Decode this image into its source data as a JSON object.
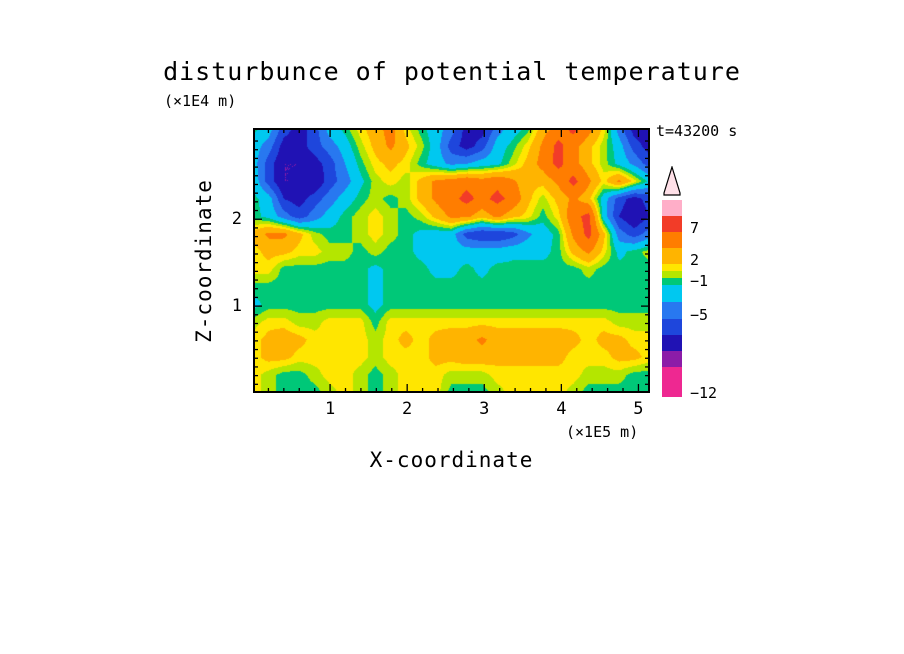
{
  "title": "disturbunce of potential temperature",
  "time_label": "t=43200 s",
  "y_axis_unit": "(×1E4 m)",
  "x_axis_unit": "(×1E5 m)",
  "axes": {
    "x": {
      "label": "X-coordinate",
      "min": 0,
      "max": 5.15,
      "ticks": [
        1,
        2,
        3,
        4,
        5
      ],
      "minor_step": 0.2
    },
    "y": {
      "label": "Z-coordinate",
      "min": 0,
      "max": 3.05,
      "ticks": [
        1,
        2
      ],
      "minor_step": 0.1
    }
  },
  "colorbar": {
    "arrow_height": 30,
    "arrow_color": "#ffe0e8",
    "tick_labels": [
      "7",
      "2",
      "−1",
      "−5",
      "−12"
    ],
    "bands": [
      {
        "color": "#ffaec8",
        "h": 16,
        "label": ""
      },
      {
        "color": "#f23c28",
        "h": 16,
        "label": "7"
      },
      {
        "color": "#ff7d00",
        "h": 16,
        "label": ""
      },
      {
        "color": "#ffb400",
        "h": 16,
        "label": "2"
      },
      {
        "color": "#ffe600",
        "h": 7,
        "label": ""
      },
      {
        "color": "#b4e600",
        "h": 7,
        "label": ""
      },
      {
        "color": "#00c878",
        "h": 7,
        "label": "−1"
      },
      {
        "color": "#00c8f0",
        "h": 17,
        "label": ""
      },
      {
        "color": "#2878f0",
        "h": 17,
        "label": "−5"
      },
      {
        "color": "#1e46dc",
        "h": 16,
        "label": ""
      },
      {
        "color": "#2012b4",
        "h": 16,
        "label": ""
      },
      {
        "color": "#8c1ca8",
        "h": 16,
        "label": ""
      },
      {
        "color": "#ee2891",
        "h": 30,
        "label": "−12"
      }
    ]
  },
  "chart_data": {
    "type": "heatmap",
    "title": "disturbunce of potential temperature",
    "xlabel": "X-coordinate (×1E5 m)",
    "ylabel": "Z-coordinate (×1E4 m)",
    "annotation": "t=43200 s",
    "x_range": [
      0,
      5.15
    ],
    "y_range": [
      0,
      3.05
    ],
    "contour_boundaries": [
      -12,
      -9,
      -7,
      -5,
      -3,
      -1,
      0,
      1,
      2,
      4,
      7,
      10
    ],
    "tick_labels": [
      "7",
      "2",
      "−1",
      "−5",
      "−12"
    ],
    "levels": [
      {
        "min": -99,
        "color": "#ee2891"
      },
      {
        "min": -12,
        "color": "#8c1ca8"
      },
      {
        "min": -9,
        "color": "#2012b4"
      },
      {
        "min": -7,
        "color": "#1e46dc"
      },
      {
        "min": -5,
        "color": "#2878f0"
      },
      {
        "min": -3,
        "color": "#00c8f0"
      },
      {
        "min": -1,
        "color": "#00c878"
      },
      {
        "min": 0,
        "color": "#b4e600"
      },
      {
        "min": 1,
        "color": "#ffe600"
      },
      {
        "min": 2,
        "color": "#ffb400"
      },
      {
        "min": 4,
        "color": "#ff7d00"
      },
      {
        "min": 7,
        "color": "#f23c28"
      },
      {
        "min": 10,
        "color": "#ffaec8"
      }
    ],
    "grid": {
      "nx": 27,
      "ny": 16,
      "x_left": 0,
      "x_right": 5.15,
      "z_top": 3.05,
      "z_bottom": 0,
      "values": [
        [
          -0.5,
          -2,
          -6,
          -8,
          -6,
          -2,
          -0.5,
          1.5,
          3,
          5,
          1.5,
          -0.5,
          -2,
          -4,
          -8,
          -8,
          -4,
          -2,
          -0.5,
          3,
          5,
          8,
          5,
          1.5,
          -4,
          -8,
          -8
        ],
        [
          -2,
          -4,
          -8,
          -8,
          -6,
          -4,
          -2,
          0.5,
          2.5,
          4.5,
          2.5,
          0.5,
          -2,
          -6,
          -8,
          -6,
          -2,
          -0.5,
          1.5,
          4.5,
          8,
          5,
          2.5,
          0.5,
          -2,
          -6,
          -8
        ],
        [
          -2,
          -6,
          -9,
          -9,
          -8,
          -6,
          -3,
          -0.5,
          1.5,
          2.5,
          1.5,
          -0.5,
          -2,
          -3.5,
          -3,
          -2,
          -1.5,
          0.5,
          2.5,
          5,
          8,
          5,
          2.5,
          0.5,
          -1.5,
          -3.5,
          -6
        ],
        [
          -1.5,
          -6,
          -9,
          -9,
          -9,
          -6,
          -4,
          -1.5,
          0.5,
          1.5,
          0.5,
          2.5,
          4.5,
          5,
          6,
          5,
          6,
          4.5,
          2.5,
          2.5,
          4.5,
          8,
          4.5,
          1.5,
          4.5,
          1.5,
          -1.5
        ],
        [
          -0.5,
          -2,
          -7,
          -8,
          -6,
          -4,
          -2,
          -0.5,
          0.5,
          -0.5,
          0.5,
          2.5,
          4.5,
          6,
          8,
          6,
          8,
          6,
          2.5,
          0.5,
          2.5,
          4.5,
          2.5,
          -2,
          -6,
          -8,
          -6
        ],
        [
          -0.5,
          -1.5,
          -4,
          -6,
          -4,
          -2,
          -0.5,
          0.5,
          1.5,
          0.5,
          -0.5,
          0.5,
          2.5,
          4.5,
          4.5,
          2.5,
          4.5,
          2.5,
          1.5,
          -0.5,
          1.5,
          6,
          8,
          -2,
          -7,
          -9,
          -7
        ],
        [
          2.5,
          4.5,
          4.5,
          2.5,
          0.5,
          -0.5,
          -0.5,
          0.5,
          1.5,
          0.5,
          -0.5,
          -1.5,
          -2,
          -2,
          -6,
          -7,
          -7,
          -6,
          -3.5,
          -2,
          -0.5,
          4.5,
          8,
          2.5,
          -4,
          -6,
          -4
        ],
        [
          1.5,
          2.5,
          2.5,
          1.5,
          1.5,
          0.5,
          0.5,
          -0.5,
          0.5,
          -0.5,
          -0.5,
          -1.5,
          -2,
          -2,
          -2,
          -2,
          -2,
          -1.5,
          -1.5,
          -1.5,
          -0.5,
          2.5,
          4.5,
          1.5,
          -1.5,
          -0.5,
          0.5
        ],
        [
          1.5,
          1.5,
          -0.5,
          -0.5,
          -0.5,
          -0.5,
          -0.5,
          -0.5,
          -1.5,
          -0.5,
          -0.5,
          -0.5,
          -1.5,
          -1.5,
          -0.5,
          -1.5,
          -0.5,
          -0.5,
          -0.5,
          -0.5,
          -0.5,
          -0.5,
          0.5,
          -0.5,
          -0.5,
          -0.5,
          -0.5
        ],
        [
          -0.5,
          -0.5,
          -0.5,
          -0.5,
          -0.5,
          -0.5,
          -0.5,
          -0.5,
          -1.5,
          -0.5,
          -0.5,
          -0.5,
          -0.5,
          -0.5,
          -0.5,
          -0.5,
          -0.5,
          -0.5,
          -0.5,
          -0.5,
          -0.5,
          -0.5,
          -0.5,
          -0.5,
          -0.5,
          -0.5,
          -0.5
        ],
        [
          -1.5,
          -0.5,
          -0.5,
          -0.5,
          -0.5,
          -0.5,
          -0.5,
          -0.5,
          -1.5,
          -0.5,
          -0.5,
          -0.5,
          -0.5,
          -0.5,
          -0.5,
          -0.5,
          -0.5,
          -0.5,
          -0.5,
          -0.5,
          -0.5,
          -0.5,
          -0.5,
          -0.5,
          -0.5,
          -0.5,
          -0.5
        ],
        [
          0.5,
          1.5,
          1.5,
          0.5,
          0.5,
          1.5,
          1.5,
          1.5,
          -0.5,
          1.5,
          1.5,
          1.5,
          1.5,
          1.5,
          1.5,
          1.5,
          1.5,
          1.5,
          1.5,
          1.5,
          1.5,
          1.5,
          1.5,
          1.5,
          0.5,
          0.5,
          0.5
        ],
        [
          1.5,
          2.5,
          3,
          2.5,
          1.5,
          1.5,
          1.5,
          1.5,
          0.5,
          1.5,
          2.5,
          1.5,
          2.5,
          3,
          3,
          4.5,
          3,
          3,
          3,
          3,
          3,
          2.5,
          1.5,
          2.5,
          2.5,
          1.5,
          1.5
        ],
        [
          1.5,
          2.5,
          2.5,
          1.5,
          1.5,
          1.5,
          1.5,
          1.5,
          0.5,
          1.5,
          1.5,
          1.5,
          2.5,
          2.5,
          3,
          3,
          2.5,
          2.5,
          2.5,
          2.5,
          2.5,
          1.5,
          1.5,
          1.5,
          2.5,
          2.5,
          1.5
        ],
        [
          1.5,
          0.5,
          -0.5,
          -0.5,
          0.5,
          1.5,
          1.5,
          0.5,
          -0.5,
          0.5,
          1.5,
          1.5,
          1.5,
          0.5,
          0.5,
          0.5,
          1.5,
          1.5,
          1.5,
          1.5,
          1.5,
          1.5,
          0.5,
          0.5,
          0.5,
          -0.5,
          -0.5
        ],
        [
          1.5,
          0.5,
          -0.5,
          -0.5,
          -0.5,
          0.5,
          1.5,
          0.5,
          -0.5,
          0.5,
          1.5,
          1.5,
          1.5,
          -0.5,
          -0.5,
          -0.5,
          0.5,
          1.5,
          1.5,
          1.5,
          1.5,
          0.5,
          -0.5,
          -0.5,
          -0.5,
          -0.5,
          -0.5
        ]
      ]
    }
  }
}
